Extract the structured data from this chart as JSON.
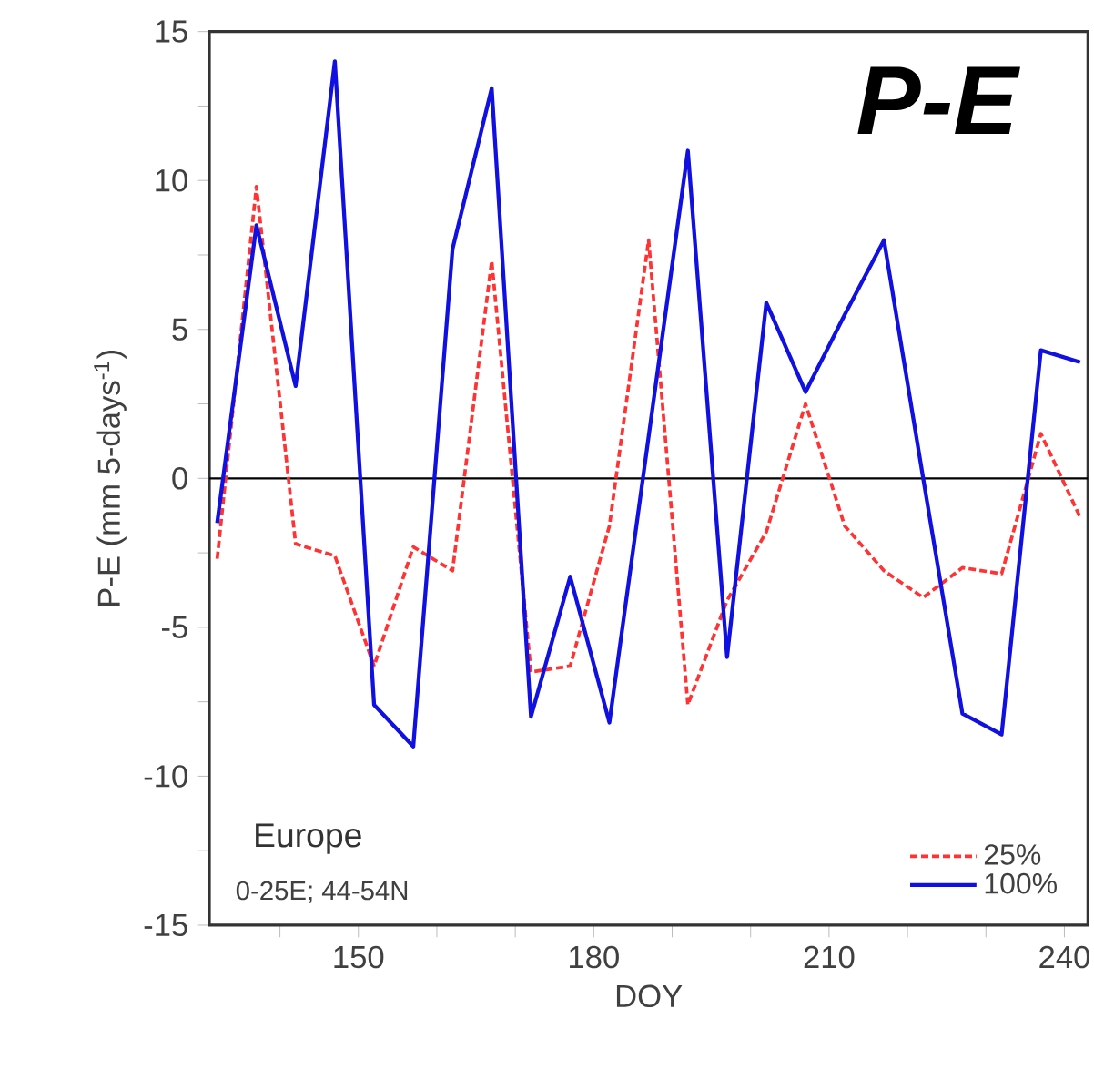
{
  "chart_data": {
    "type": "line",
    "xlabel": "DOY",
    "ylabel": "P-E  (mm 5-days$^{-1}$)",
    "annotations": [
      "P-E",
      "Europe",
      "0-25E; 44-54N"
    ],
    "x": [
      132,
      137,
      142,
      147,
      152,
      157,
      162,
      167,
      172,
      177,
      182,
      187,
      192,
      197,
      202,
      207,
      212,
      217,
      222,
      227,
      232,
      237,
      242
    ],
    "series": [
      {
        "name": "25%",
        "color": "#ff3333",
        "line_style": "dashed",
        "values": [
          -2.7,
          9.8,
          -2.2,
          -2.6,
          -6.3,
          -2.3,
          -3.1,
          7.3,
          -6.5,
          -6.3,
          -1.6,
          8.0,
          -7.6,
          -4.1,
          -1.8,
          2.5,
          -1.6,
          -3.1,
          -4.0,
          -3.0,
          -3.2,
          1.5,
          -1.3
        ]
      },
      {
        "name": "100%",
        "color": "#1010e0",
        "line_style": "solid",
        "values": [
          -1.5,
          8.5,
          3.1,
          14.0,
          -7.6,
          -9.0,
          7.7,
          13.1,
          -8.0,
          -3.3,
          -8.2,
          1.4,
          11.0,
          -6.0,
          5.9,
          2.9,
          5.5,
          8.0,
          0.0,
          -7.9,
          -8.6,
          4.3,
          3.9
        ]
      }
    ],
    "xlim": [
      131,
      243
    ],
    "ylim": [
      -15,
      15
    ],
    "xticks": [
      {
        "value": 140,
        "label": null
      },
      150,
      {
        "value": 160,
        "label": null
      },
      {
        "value": 170,
        "label": null
      },
      180,
      {
        "value": 190,
        "label": null
      },
      {
        "value": 200,
        "label": null
      },
      210,
      {
        "value": 220,
        "label": null
      },
      {
        "value": 230,
        "label": null
      },
      240
    ],
    "yticks": [
      -15,
      {
        "value": -12.5,
        "label": null
      },
      -10,
      {
        "value": -7.5,
        "label": null
      },
      -5,
      {
        "value": -2.5,
        "label": null
      },
      0,
      {
        "value": 2.5,
        "label": null
      },
      5,
      {
        "value": 7.5,
        "label": null
      },
      10,
      {
        "value": 12.5,
        "label": null
      },
      15
    ],
    "ref_lines": [
      {
        "axis": "y",
        "value": 0,
        "color": "#000000"
      }
    ],
    "grid": false,
    "legend": "bottom right",
    "marker": "none"
  }
}
